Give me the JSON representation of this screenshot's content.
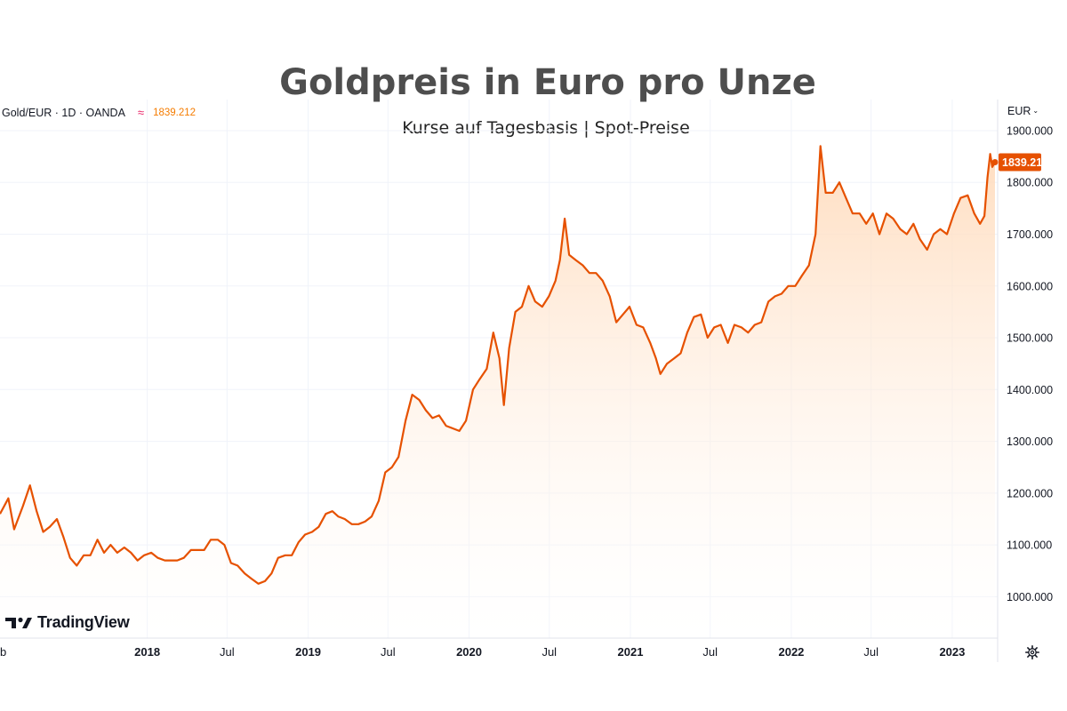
{
  "chart_data": {
    "type": "area",
    "title": "Goldpreis in Euro pro Unze",
    "subtitle": "Kurse auf Tagesbasis | Spot-Preise",
    "symbol": "Gold/EUR · 1D · OANDA",
    "current_price": "1839.212",
    "currency": "EUR",
    "line_color": "#e65100",
    "fill_color": "#ffe0c2",
    "ylim": [
      920,
      1960
    ],
    "yticks": [
      "1900.000",
      "1800.000",
      "1700.000",
      "1600.000",
      "1500.000",
      "1400.000",
      "1300.000",
      "1200.000",
      "1100.000",
      "1000.000"
    ],
    "ytick_values": [
      1900,
      1800,
      1700,
      1600,
      1500,
      1400,
      1300,
      1200,
      1100,
      1000
    ],
    "xlim": [
      "2017-02-01",
      "2023-04-10"
    ],
    "xticks": [
      {
        "date": "2017-02-01",
        "label": "b",
        "year": false
      },
      {
        "date": "2018-01-01",
        "label": "2018",
        "year": true
      },
      {
        "date": "2018-07-01",
        "label": "Jul",
        "year": false
      },
      {
        "date": "2019-01-01",
        "label": "2019",
        "year": true
      },
      {
        "date": "2019-07-01",
        "label": "Jul",
        "year": false
      },
      {
        "date": "2020-01-01",
        "label": "2020",
        "year": true
      },
      {
        "date": "2020-07-01",
        "label": "Jul",
        "year": false
      },
      {
        "date": "2021-01-01",
        "label": "2021",
        "year": true
      },
      {
        "date": "2021-07-01",
        "label": "Jul",
        "year": false
      },
      {
        "date": "2022-01-01",
        "label": "2022",
        "year": true
      },
      {
        "date": "2022-07-01",
        "label": "Jul",
        "year": false
      },
      {
        "date": "2023-01-01",
        "label": "2023",
        "year": true
      }
    ],
    "grid": true,
    "series": [
      {
        "points": [
          [
            "2017-02-01",
            1160
          ],
          [
            "2017-02-20",
            1190
          ],
          [
            "2017-03-05",
            1130
          ],
          [
            "2017-03-25",
            1175
          ],
          [
            "2017-04-10",
            1215
          ],
          [
            "2017-04-25",
            1165
          ],
          [
            "2017-05-10",
            1125
          ],
          [
            "2017-05-25",
            1135
          ],
          [
            "2017-06-10",
            1150
          ],
          [
            "2017-06-25",
            1115
          ],
          [
            "2017-07-10",
            1075
          ],
          [
            "2017-07-25",
            1060
          ],
          [
            "2017-08-10",
            1080
          ],
          [
            "2017-08-25",
            1080
          ],
          [
            "2017-09-10",
            1110
          ],
          [
            "2017-09-25",
            1085
          ],
          [
            "2017-10-10",
            1100
          ],
          [
            "2017-10-25",
            1085
          ],
          [
            "2017-11-10",
            1095
          ],
          [
            "2017-11-25",
            1085
          ],
          [
            "2017-12-10",
            1070
          ],
          [
            "2017-12-25",
            1080
          ],
          [
            "2018-01-10",
            1085
          ],
          [
            "2018-01-25",
            1075
          ],
          [
            "2018-02-10",
            1070
          ],
          [
            "2018-02-25",
            1070
          ],
          [
            "2018-03-10",
            1070
          ],
          [
            "2018-03-25",
            1075
          ],
          [
            "2018-04-10",
            1090
          ],
          [
            "2018-04-25",
            1090
          ],
          [
            "2018-05-10",
            1090
          ],
          [
            "2018-05-25",
            1110
          ],
          [
            "2018-06-10",
            1110
          ],
          [
            "2018-06-25",
            1100
          ],
          [
            "2018-07-10",
            1065
          ],
          [
            "2018-07-25",
            1060
          ],
          [
            "2018-08-10",
            1045
          ],
          [
            "2018-08-25",
            1035
          ],
          [
            "2018-09-10",
            1025
          ],
          [
            "2018-09-25",
            1030
          ],
          [
            "2018-10-10",
            1045
          ],
          [
            "2018-10-25",
            1075
          ],
          [
            "2018-11-10",
            1080
          ],
          [
            "2018-11-25",
            1080
          ],
          [
            "2018-12-10",
            1105
          ],
          [
            "2018-12-25",
            1120
          ],
          [
            "2019-01-10",
            1125
          ],
          [
            "2019-01-25",
            1135
          ],
          [
            "2019-02-10",
            1160
          ],
          [
            "2019-02-25",
            1165
          ],
          [
            "2019-03-10",
            1155
          ],
          [
            "2019-03-25",
            1150
          ],
          [
            "2019-04-10",
            1140
          ],
          [
            "2019-04-25",
            1140
          ],
          [
            "2019-05-10",
            1145
          ],
          [
            "2019-05-25",
            1155
          ],
          [
            "2019-06-10",
            1185
          ],
          [
            "2019-06-25",
            1240
          ],
          [
            "2019-07-10",
            1250
          ],
          [
            "2019-07-25",
            1270
          ],
          [
            "2019-08-10",
            1340
          ],
          [
            "2019-08-25",
            1390
          ],
          [
            "2019-09-10",
            1380
          ],
          [
            "2019-09-25",
            1360
          ],
          [
            "2019-10-10",
            1345
          ],
          [
            "2019-10-25",
            1350
          ],
          [
            "2019-11-10",
            1330
          ],
          [
            "2019-11-25",
            1325
          ],
          [
            "2019-12-10",
            1320
          ],
          [
            "2019-12-25",
            1340
          ],
          [
            "2020-01-10",
            1400
          ],
          [
            "2020-01-25",
            1420
          ],
          [
            "2020-02-10",
            1440
          ],
          [
            "2020-02-25",
            1510
          ],
          [
            "2020-03-10",
            1460
          ],
          [
            "2020-03-20",
            1370
          ],
          [
            "2020-04-01",
            1480
          ],
          [
            "2020-04-15",
            1550
          ],
          [
            "2020-04-30",
            1560
          ],
          [
            "2020-05-15",
            1600
          ],
          [
            "2020-05-30",
            1570
          ],
          [
            "2020-06-15",
            1560
          ],
          [
            "2020-06-30",
            1580
          ],
          [
            "2020-07-15",
            1610
          ],
          [
            "2020-07-25",
            1650
          ],
          [
            "2020-08-05",
            1730
          ],
          [
            "2020-08-15",
            1660
          ],
          [
            "2020-08-30",
            1650
          ],
          [
            "2020-09-15",
            1640
          ],
          [
            "2020-09-30",
            1625
          ],
          [
            "2020-10-15",
            1625
          ],
          [
            "2020-10-30",
            1610
          ],
          [
            "2020-11-15",
            1580
          ],
          [
            "2020-11-30",
            1530
          ],
          [
            "2020-12-15",
            1545
          ],
          [
            "2020-12-30",
            1560
          ],
          [
            "2021-01-15",
            1525
          ],
          [
            "2021-01-30",
            1520
          ],
          [
            "2021-02-15",
            1490
          ],
          [
            "2021-02-28",
            1460
          ],
          [
            "2021-03-10",
            1430
          ],
          [
            "2021-03-25",
            1450
          ],
          [
            "2021-04-10",
            1460
          ],
          [
            "2021-04-25",
            1470
          ],
          [
            "2021-05-10",
            1510
          ],
          [
            "2021-05-25",
            1540
          ],
          [
            "2021-06-10",
            1545
          ],
          [
            "2021-06-25",
            1500
          ],
          [
            "2021-07-10",
            1520
          ],
          [
            "2021-07-25",
            1525
          ],
          [
            "2021-08-10",
            1490
          ],
          [
            "2021-08-25",
            1525
          ],
          [
            "2021-09-10",
            1520
          ],
          [
            "2021-09-25",
            1510
          ],
          [
            "2021-10-10",
            1525
          ],
          [
            "2021-10-25",
            1530
          ],
          [
            "2021-11-10",
            1570
          ],
          [
            "2021-11-25",
            1580
          ],
          [
            "2021-12-10",
            1585
          ],
          [
            "2021-12-25",
            1600
          ],
          [
            "2022-01-10",
            1600
          ],
          [
            "2022-01-25",
            1620
          ],
          [
            "2022-02-10",
            1640
          ],
          [
            "2022-02-25",
            1700
          ],
          [
            "2022-03-08",
            1870
          ],
          [
            "2022-03-20",
            1780
          ],
          [
            "2022-04-05",
            1780
          ],
          [
            "2022-04-20",
            1800
          ],
          [
            "2022-05-05",
            1770
          ],
          [
            "2022-05-20",
            1740
          ],
          [
            "2022-06-05",
            1740
          ],
          [
            "2022-06-20",
            1720
          ],
          [
            "2022-07-05",
            1740
          ],
          [
            "2022-07-20",
            1700
          ],
          [
            "2022-08-05",
            1740
          ],
          [
            "2022-08-20",
            1730
          ],
          [
            "2022-09-05",
            1710
          ],
          [
            "2022-09-20",
            1700
          ],
          [
            "2022-10-05",
            1720
          ],
          [
            "2022-10-20",
            1690
          ],
          [
            "2022-11-05",
            1670
          ],
          [
            "2022-11-20",
            1700
          ],
          [
            "2022-12-05",
            1710
          ],
          [
            "2022-12-20",
            1700
          ],
          [
            "2023-01-05",
            1740
          ],
          [
            "2023-01-20",
            1770
          ],
          [
            "2023-02-05",
            1775
          ],
          [
            "2023-02-20",
            1740
          ],
          [
            "2023-03-05",
            1720
          ],
          [
            "2023-03-15",
            1735
          ],
          [
            "2023-03-22",
            1810
          ],
          [
            "2023-03-28",
            1855
          ],
          [
            "2023-04-02",
            1830
          ],
          [
            "2023-04-08",
            1839
          ]
        ]
      }
    ]
  },
  "branding": {
    "logo_text": "TradingView"
  }
}
